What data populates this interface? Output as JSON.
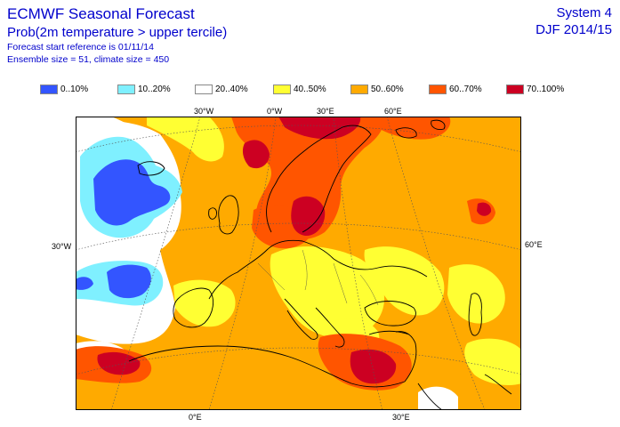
{
  "header": {
    "title": "ECMWF Seasonal Forecast",
    "subtitle": "Prob(2m temperature > upper tercile)",
    "start_reference": "Forecast start reference is 01/11/14",
    "ensemble": "Ensemble size = 51, climate size = 450",
    "system": "System 4",
    "period": "DJF 2014/15"
  },
  "legend": [
    {
      "label": "0..10%",
      "color": "#3355ff"
    },
    {
      "label": "10..20%",
      "color": "#7ff0ff"
    },
    {
      "label": "20..40%",
      "color": "#ffffff"
    },
    {
      "label": "40..50%",
      "color": "#ffff33"
    },
    {
      "label": "50..60%",
      "color": "#ffaa00"
    },
    {
      "label": "60..70%",
      "color": "#ff5500"
    },
    {
      "label": "70..100%",
      "color": "#cc0022"
    }
  ],
  "graticule_labels": {
    "top_30w": "30°W",
    "top_0w": "0°W",
    "top_30e": "30°E",
    "top_60e": "60°E",
    "left_30w": "30°W",
    "right_60e": "60°E",
    "bottom_0e": "0°E",
    "bottom_30e": "30°E"
  }
}
